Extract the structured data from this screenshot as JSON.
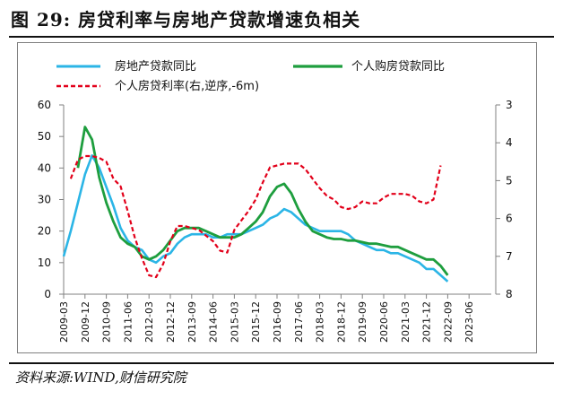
{
  "header": {
    "title": "图 29:  房贷利率与房地产贷款增速负相关"
  },
  "footer": {
    "source": "资料来源:WIND,财信研究院"
  },
  "colors": {
    "real_estate_loan": "#2bb5e6",
    "mortgage_loan": "#1e9e3e",
    "mortgage_rate": "#e2001a",
    "axis": "#808080",
    "text": "#111111"
  },
  "chart_data": {
    "type": "line",
    "title": "",
    "legend_position": "top",
    "grid": false,
    "x_ticks": [
      "2009-03",
      "2009-12",
      "2010-09",
      "2011-06",
      "2012-03",
      "2012-12",
      "2013-09",
      "2014-06",
      "2015-03",
      "2015-12",
      "2016-09",
      "2017-06",
      "2018-03",
      "2018-12",
      "2019-09",
      "2020-06",
      "2021-03",
      "2021-12",
      "2022-09",
      "2023-06"
    ],
    "y_left": {
      "min": 0,
      "max": 60,
      "ticks": [
        0,
        10,
        20,
        30,
        40,
        50,
        60
      ]
    },
    "y_right": {
      "min": 3,
      "max": 8,
      "ticks": [
        3,
        4,
        5,
        6,
        7,
        8
      ],
      "inverted": true
    },
    "series": [
      {
        "name": "房地产贷款同比",
        "axis": "left",
        "style": "solid",
        "data": [
          [
            "2009-03",
            12
          ],
          [
            "2009-06",
            20
          ],
          [
            "2009-09",
            29
          ],
          [
            "2009-12",
            38
          ],
          [
            "2010-03",
            44
          ],
          [
            "2010-06",
            40
          ],
          [
            "2010-09",
            34
          ],
          [
            "2010-12",
            28
          ],
          [
            "2011-03",
            21
          ],
          [
            "2011-06",
            17
          ],
          [
            "2011-09",
            15
          ],
          [
            "2011-12",
            14
          ],
          [
            "2012-03",
            11
          ],
          [
            "2012-06",
            10
          ],
          [
            "2012-09",
            12
          ],
          [
            "2012-12",
            13
          ],
          [
            "2013-03",
            16
          ],
          [
            "2013-06",
            18
          ],
          [
            "2013-09",
            19
          ],
          [
            "2013-12",
            19
          ],
          [
            "2014-03",
            19
          ],
          [
            "2014-06",
            18
          ],
          [
            "2014-09",
            18
          ],
          [
            "2014-12",
            19
          ],
          [
            "2015-03",
            19
          ],
          [
            "2015-06",
            19
          ],
          [
            "2015-09",
            20
          ],
          [
            "2015-12",
            21
          ],
          [
            "2016-03",
            22
          ],
          [
            "2016-06",
            24
          ],
          [
            "2016-09",
            25
          ],
          [
            "2016-12",
            27
          ],
          [
            "2017-03",
            26
          ],
          [
            "2017-06",
            24
          ],
          [
            "2017-09",
            22
          ],
          [
            "2017-12",
            21
          ],
          [
            "2018-03",
            20
          ],
          [
            "2018-06",
            20
          ],
          [
            "2018-09",
            20
          ],
          [
            "2018-12",
            20
          ],
          [
            "2019-03",
            19
          ],
          [
            "2019-06",
            17
          ],
          [
            "2019-09",
            16
          ],
          [
            "2019-12",
            15
          ],
          [
            "2020-03",
            14
          ],
          [
            "2020-06",
            14
          ],
          [
            "2020-09",
            13
          ],
          [
            "2020-12",
            13
          ],
          [
            "2021-03",
            12
          ],
          [
            "2021-06",
            11
          ],
          [
            "2021-09",
            10
          ],
          [
            "2021-12",
            8
          ],
          [
            "2022-03",
            8
          ],
          [
            "2022-06",
            6
          ],
          [
            "2022-09",
            4
          ]
        ]
      },
      {
        "name": "个人购房贷款同比",
        "axis": "left",
        "style": "solid",
        "data": [
          [
            "2009-09",
            40
          ],
          [
            "2009-12",
            53
          ],
          [
            "2010-03",
            49
          ],
          [
            "2010-06",
            37
          ],
          [
            "2010-09",
            29
          ],
          [
            "2010-12",
            23
          ],
          [
            "2011-03",
            18
          ],
          [
            "2011-06",
            16
          ],
          [
            "2011-09",
            15
          ],
          [
            "2011-12",
            12
          ],
          [
            "2012-03",
            11
          ],
          [
            "2012-06",
            12
          ],
          [
            "2012-09",
            14
          ],
          [
            "2012-12",
            17
          ],
          [
            "2013-03",
            20
          ],
          [
            "2013-06",
            21
          ],
          [
            "2013-09",
            21
          ],
          [
            "2013-12",
            21
          ],
          [
            "2014-03",
            20
          ],
          [
            "2014-06",
            19
          ],
          [
            "2014-09",
            18
          ],
          [
            "2014-12",
            18
          ],
          [
            "2015-03",
            18
          ],
          [
            "2015-06",
            19
          ],
          [
            "2015-09",
            21
          ],
          [
            "2015-12",
            23
          ],
          [
            "2016-03",
            26
          ],
          [
            "2016-06",
            31
          ],
          [
            "2016-09",
            34
          ],
          [
            "2016-12",
            35
          ],
          [
            "2017-03",
            32
          ],
          [
            "2017-06",
            27
          ],
          [
            "2017-09",
            23
          ],
          [
            "2017-12",
            20
          ],
          [
            "2018-03",
            19
          ],
          [
            "2018-06",
            18
          ],
          [
            "2018-09",
            17.5
          ],
          [
            "2018-12",
            17.5
          ],
          [
            "2019-03",
            17
          ],
          [
            "2019-06",
            17
          ],
          [
            "2019-09",
            16.5
          ],
          [
            "2019-12",
            16
          ],
          [
            "2020-03",
            16
          ],
          [
            "2020-06",
            15.5
          ],
          [
            "2020-09",
            15
          ],
          [
            "2020-12",
            15
          ],
          [
            "2021-03",
            14
          ],
          [
            "2021-06",
            13
          ],
          [
            "2021-09",
            12
          ],
          [
            "2021-12",
            11
          ],
          [
            "2022-03",
            11
          ],
          [
            "2022-06",
            9
          ],
          [
            "2022-09",
            6
          ]
        ]
      },
      {
        "name": "个人房贷利率(右,逆序,-6m)",
        "axis": "right",
        "style": "dashed",
        "data": [
          [
            "2009-06",
            4.95
          ],
          [
            "2009-09",
            4.45
          ],
          [
            "2009-12",
            4.35
          ],
          [
            "2010-03",
            4.35
          ],
          [
            "2010-06",
            4.4
          ],
          [
            "2010-09",
            4.5
          ],
          [
            "2010-12",
            4.95
          ],
          [
            "2011-03",
            5.15
          ],
          [
            "2011-06",
            5.8
          ],
          [
            "2011-09",
            6.5
          ],
          [
            "2011-12",
            7.05
          ],
          [
            "2012-03",
            7.5
          ],
          [
            "2012-06",
            7.55
          ],
          [
            "2012-09",
            7.2
          ],
          [
            "2012-12",
            6.6
          ],
          [
            "2013-03",
            6.2
          ],
          [
            "2013-06",
            6.2
          ],
          [
            "2013-09",
            6.25
          ],
          [
            "2013-12",
            6.3
          ],
          [
            "2014-03",
            6.45
          ],
          [
            "2014-06",
            6.6
          ],
          [
            "2014-09",
            6.85
          ],
          [
            "2014-12",
            6.9
          ],
          [
            "2015-03",
            6.3
          ],
          [
            "2015-06",
            6.05
          ],
          [
            "2015-09",
            5.8
          ],
          [
            "2015-12",
            5.5
          ],
          [
            "2016-03",
            5.05
          ],
          [
            "2016-06",
            4.65
          ],
          [
            "2016-09",
            4.6
          ],
          [
            "2016-12",
            4.55
          ],
          [
            "2017-03",
            4.55
          ],
          [
            "2017-06",
            4.55
          ],
          [
            "2017-09",
            4.7
          ],
          [
            "2017-12",
            4.95
          ],
          [
            "2018-03",
            5.2
          ],
          [
            "2018-06",
            5.4
          ],
          [
            "2018-09",
            5.5
          ],
          [
            "2018-12",
            5.7
          ],
          [
            "2019-03",
            5.75
          ],
          [
            "2019-06",
            5.7
          ],
          [
            "2019-09",
            5.55
          ],
          [
            "2019-12",
            5.6
          ],
          [
            "2020-03",
            5.6
          ],
          [
            "2020-06",
            5.45
          ],
          [
            "2020-09",
            5.35
          ],
          [
            "2020-12",
            5.35
          ],
          [
            "2021-03",
            5.35
          ],
          [
            "2021-06",
            5.4
          ],
          [
            "2021-09",
            5.55
          ],
          [
            "2021-12",
            5.6
          ],
          [
            "2022-03",
            5.5
          ],
          [
            "2022-06",
            4.6
          ]
        ]
      }
    ]
  }
}
